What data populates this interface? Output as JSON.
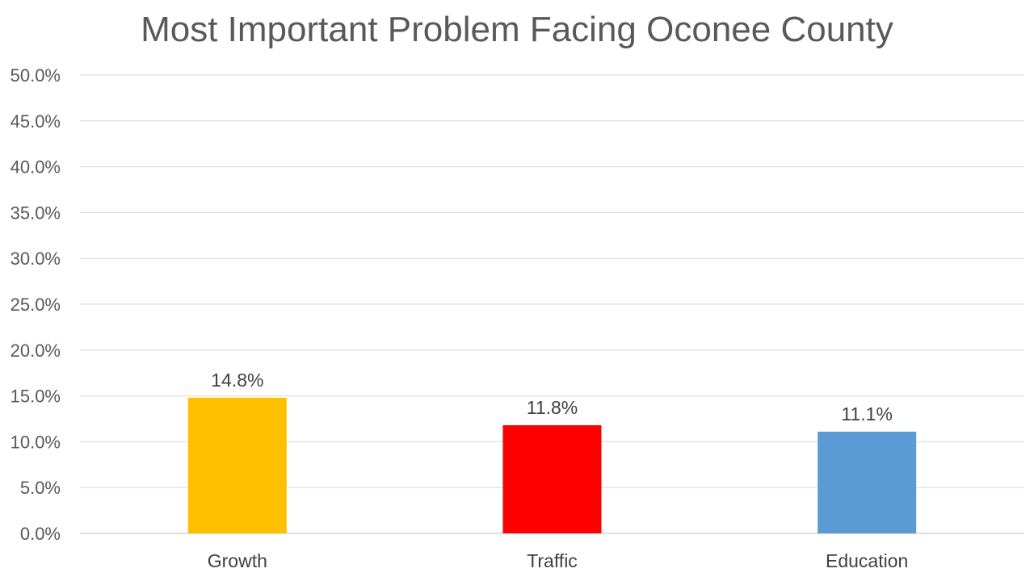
{
  "chart_data": {
    "type": "bar",
    "title": "Most Important Problem Facing Oconee County",
    "xlabel": "",
    "ylabel": "",
    "categories": [
      "Growth",
      "Traffic",
      "Education"
    ],
    "values": [
      14.8,
      11.8,
      11.1
    ],
    "data_labels": [
      "14.8%",
      "11.8%",
      "11.1%"
    ],
    "colors": [
      "#FFC000",
      "#FF0000",
      "#5B9BD5"
    ],
    "ylim": [
      0,
      50
    ],
    "yticks": [
      0,
      5,
      10,
      15,
      20,
      25,
      30,
      35,
      40,
      45,
      50
    ],
    "ytick_labels": [
      "0.0%",
      "5.0%",
      "10.0%",
      "15.0%",
      "20.0%",
      "25.0%",
      "30.0%",
      "35.0%",
      "40.0%",
      "45.0%",
      "50.0%"
    ],
    "grid": true,
    "legend": "none"
  }
}
